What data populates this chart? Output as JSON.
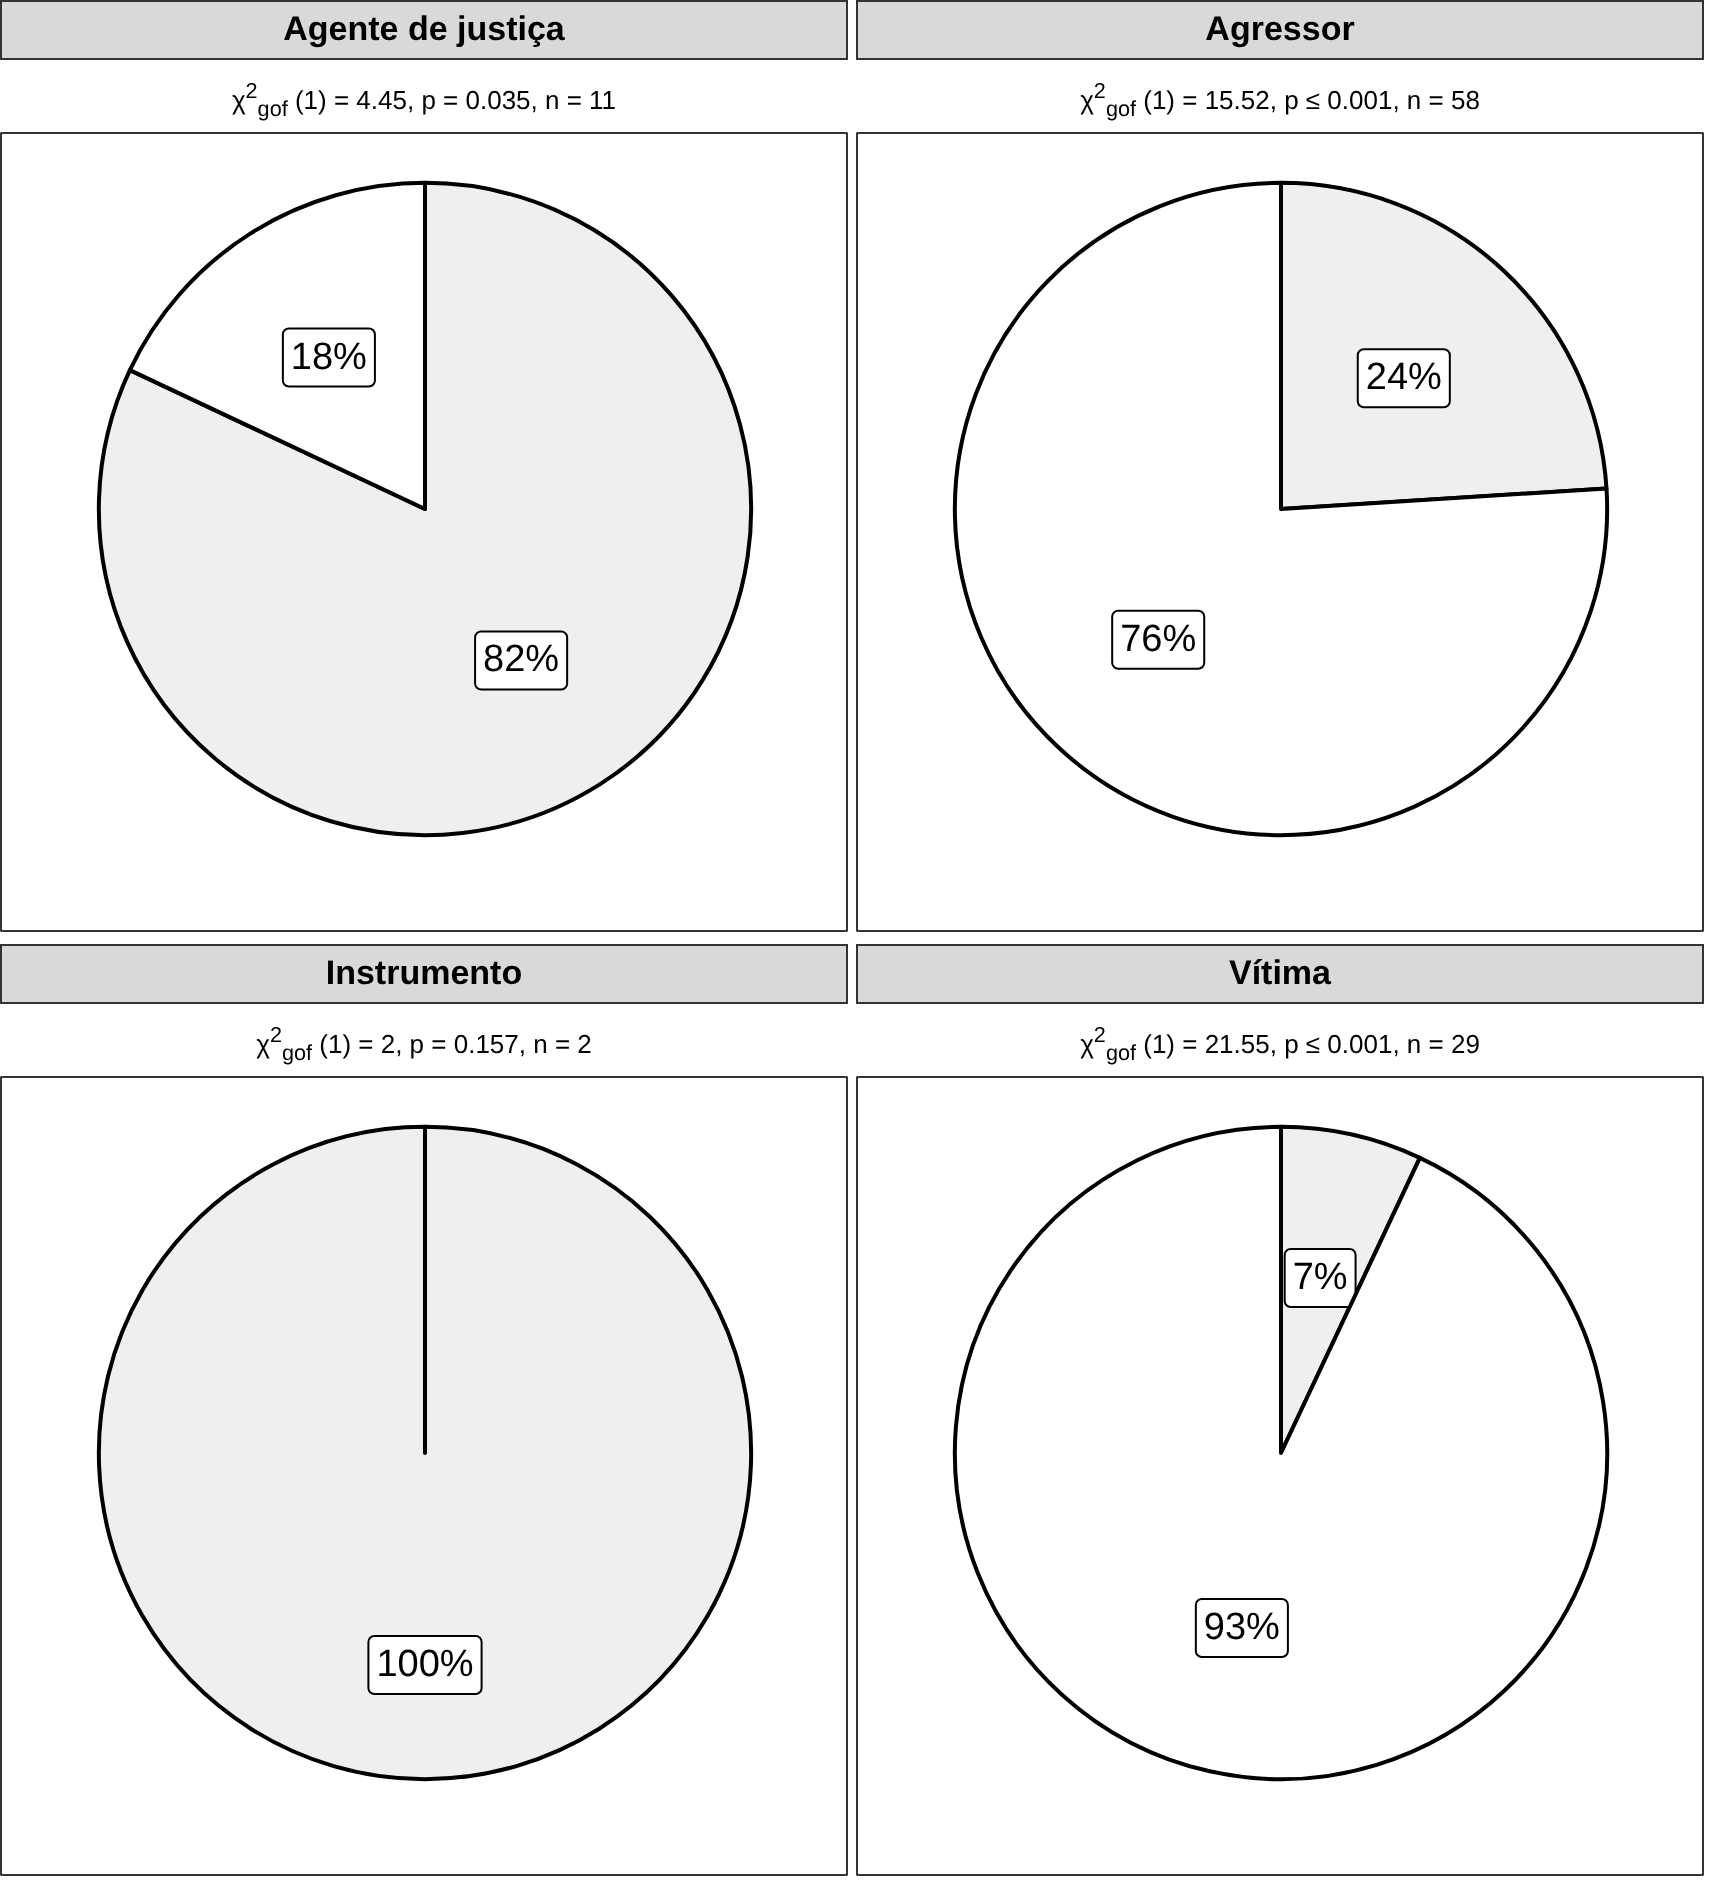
{
  "chart_data": [
    {
      "type": "pie",
      "title": "Agente de justiça",
      "subtitle": "χ$^{2}$$_{gof}$ (1) = 4.45,  p = 0.035,  n = 11",
      "categories": [
        null,
        null
      ],
      "values": [
        82,
        18
      ],
      "colors": [
        "#efefef",
        "#ffffff"
      ],
      "value_labels": [
        "82%",
        "18%"
      ]
    },
    {
      "type": "pie",
      "title": "Agressor",
      "subtitle": "χ$^{2}$$_{gof}$ (1) = 15.52,  p ≤ 0.001,  n = 58",
      "categories": [
        null,
        null
      ],
      "values": [
        24,
        76
      ],
      "colors": [
        "#efefef",
        "#ffffff"
      ],
      "value_labels": [
        "24%",
        "76%"
      ]
    },
    {
      "type": "pie",
      "title": "Instrumento",
      "subtitle": "χ$^{2}$$_{gof}$ (1) = 2,  p = 0.157,  n = 2",
      "categories": [
        null,
        null
      ],
      "values": [
        100,
        0
      ],
      "colors": [
        "#efefef",
        "#ffffff"
      ],
      "value_labels": [
        "100%",
        null
      ]
    },
    {
      "type": "pie",
      "title": "Vítima",
      "subtitle": "χ$^{2}$$_{gof}$ (1) = 21.55,  p ≤ 0.001,  n = 29",
      "categories": [
        null,
        null
      ],
      "values": [
        7,
        93
      ],
      "colors": [
        "#efefef",
        "#ffffff"
      ],
      "value_labels": [
        "7%",
        "93%"
      ]
    }
  ]
}
